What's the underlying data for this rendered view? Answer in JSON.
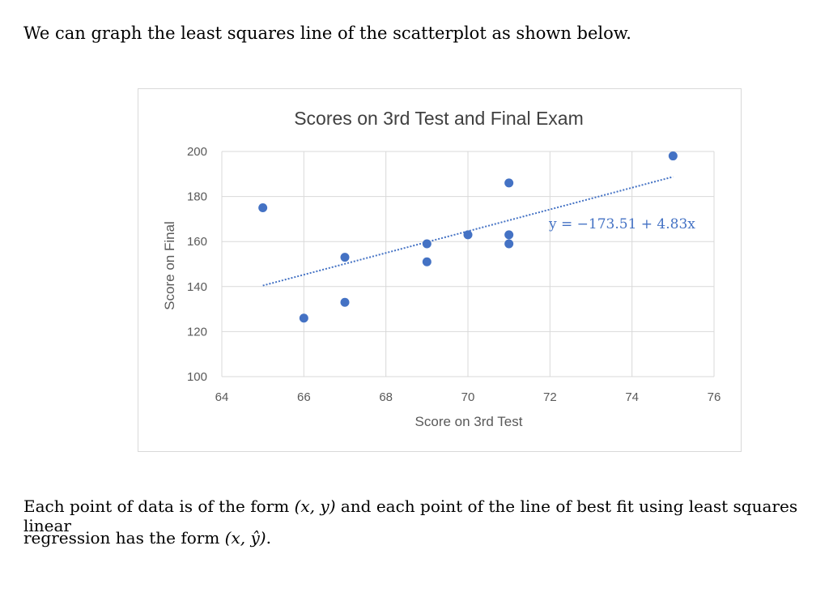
{
  "text": {
    "intro": "We can graph the least squares line of the scatterplot as shown below.",
    "para_prefix": "Each point of data is of the form ",
    "para_pair": "(x, y)",
    "para_suffix": " and each point of the line of best fit using least squares linear",
    "para2_prefix": "regression has the form ",
    "para2_pair": "(x, ŷ)",
    "para2_suffix": "."
  },
  "chart_data": {
    "type": "scatter",
    "title": "Scores on 3rd Test and Final Exam",
    "xlabel": "Score on 3rd Test",
    "ylabel": "Score on Final",
    "xlim": [
      64,
      76
    ],
    "ylim": [
      100,
      200
    ],
    "xticks": [
      64,
      66,
      68,
      70,
      72,
      74,
      76
    ],
    "yticks": [
      100,
      120,
      140,
      160,
      180,
      200
    ],
    "grid": true,
    "points": [
      {
        "x": 65,
        "y": 175
      },
      {
        "x": 66,
        "y": 126
      },
      {
        "x": 67,
        "y": 153
      },
      {
        "x": 67,
        "y": 133
      },
      {
        "x": 69,
        "y": 159
      },
      {
        "x": 69,
        "y": 151
      },
      {
        "x": 70,
        "y": 163
      },
      {
        "x": 71,
        "y": 186
      },
      {
        "x": 71,
        "y": 163
      },
      {
        "x": 71,
        "y": 159
      },
      {
        "x": 75,
        "y": 198
      }
    ],
    "trendline": {
      "type": "linear",
      "intercept": -173.51,
      "slope": 4.83,
      "x_range": [
        65,
        75
      ],
      "label": "y = −173.51 + 4.83x"
    },
    "colors": {
      "points": "#4472c4",
      "trendline": "#4472c4",
      "grid": "#d9d9d9",
      "border": "#d9d9d9"
    }
  }
}
